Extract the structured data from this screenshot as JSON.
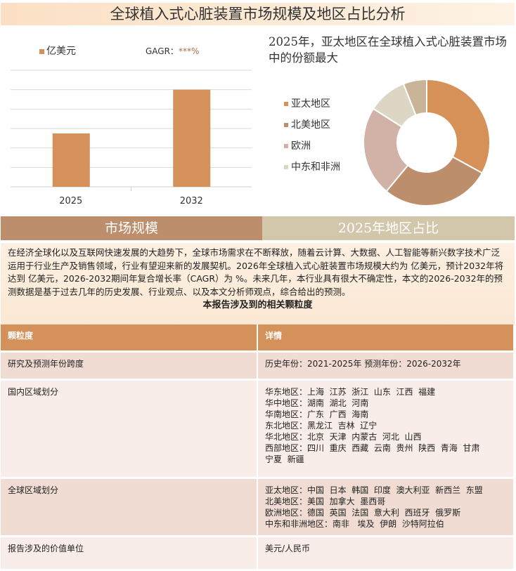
{
  "title": "全球植入式心脏装置市场规模及地区占比分析",
  "bar_legend": {
    "unit": "亿美元",
    "gagr_label": "GAGR：",
    "gagr_value": "***%"
  },
  "pie_title": "2025年，亚太地区在全球植入式心脏装置市场中的份额最大",
  "colors": {
    "accent": "#d4915a",
    "section_left": "#bc8e6c",
    "section_right": "#d3c7ab"
  },
  "chart_data": [
    {
      "type": "bar",
      "categories": [
        "2025",
        "2032"
      ],
      "values": [
        2.75,
        5.0
      ],
      "ylim": [
        0,
        6
      ],
      "grid": true,
      "legend": "top-left",
      "series": [
        {
          "name": "亿美元",
          "color": "#d4915a"
        }
      ]
    },
    {
      "type": "pie",
      "donut": true,
      "labels": [
        "亚太地区",
        "北美地区",
        "欧洲",
        "中东和非洲",
        ""
      ],
      "values": [
        33,
        28,
        23,
        10,
        6
      ],
      "colors": [
        "#d59158",
        "#bd8e6c",
        "#d1b2a7",
        "#ddd6c4",
        "#c9b498"
      ],
      "legend": "left"
    }
  ],
  "sections": {
    "left": "市场规模",
    "right": "2025年地区占比"
  },
  "paragraph": "在经济全球化以及互联网快速发展的大趋势下，全球市场需求在不断释放，随着云计算、大数据、人工智能等新兴数字技术广泛运用于行业生产及销售领域，行业有望迎来新的发展契机。2026年全球植入式心脏装置市场规模大约为 亿美元，预计2032年将达到 亿美元，2026-2032期间年复合增长率（CAGR）为 %。未来几年，本行业具有很大不确定性，本文的2026-2032年的预测数据是基于过去几年的历史发展、行业观点、以及本文分析师观点，综合给出的预测。",
  "table_title": "本报告涉及到的相关颗粒度",
  "table": {
    "headers": [
      "颗粒度",
      "详情"
    ],
    "rows": [
      {
        "label": "研究及预测年份跨度",
        "lines": [
          "历史年份：2021-2025年 预测年份：2026-2032年"
        ]
      },
      {
        "label": "国内区域划分",
        "lines": [
          "华东地区：上海  江苏  浙江  山东  江西  福建",
          "华中地区：湖南  湖北  河南",
          "华南地区：广东  广西  海南",
          "东北地区：黑龙江  吉林  辽宁",
          "华北地区：北京  天津  内蒙古  河北  山西",
          "西部地区：四川  重庆  西藏  云南  贵州  陕西  青海  甘肃",
          "宁夏  新疆"
        ]
      },
      {
        "label": "全球区域划分",
        "lines": [
          "亚太地区：中国  日本  韩国  印度  澳大利亚  新西兰  东盟",
          "北美地区：美国  加拿大  墨西哥",
          "欧洲地区：德国  英国  法国  意大利  西班牙  俄罗斯",
          "中东和非洲地区：南非   埃及  伊朗  沙特阿拉伯"
        ]
      },
      {
        "label": "报告涉及的价值单位",
        "lines": [
          "美元/人民币"
        ]
      }
    ]
  }
}
